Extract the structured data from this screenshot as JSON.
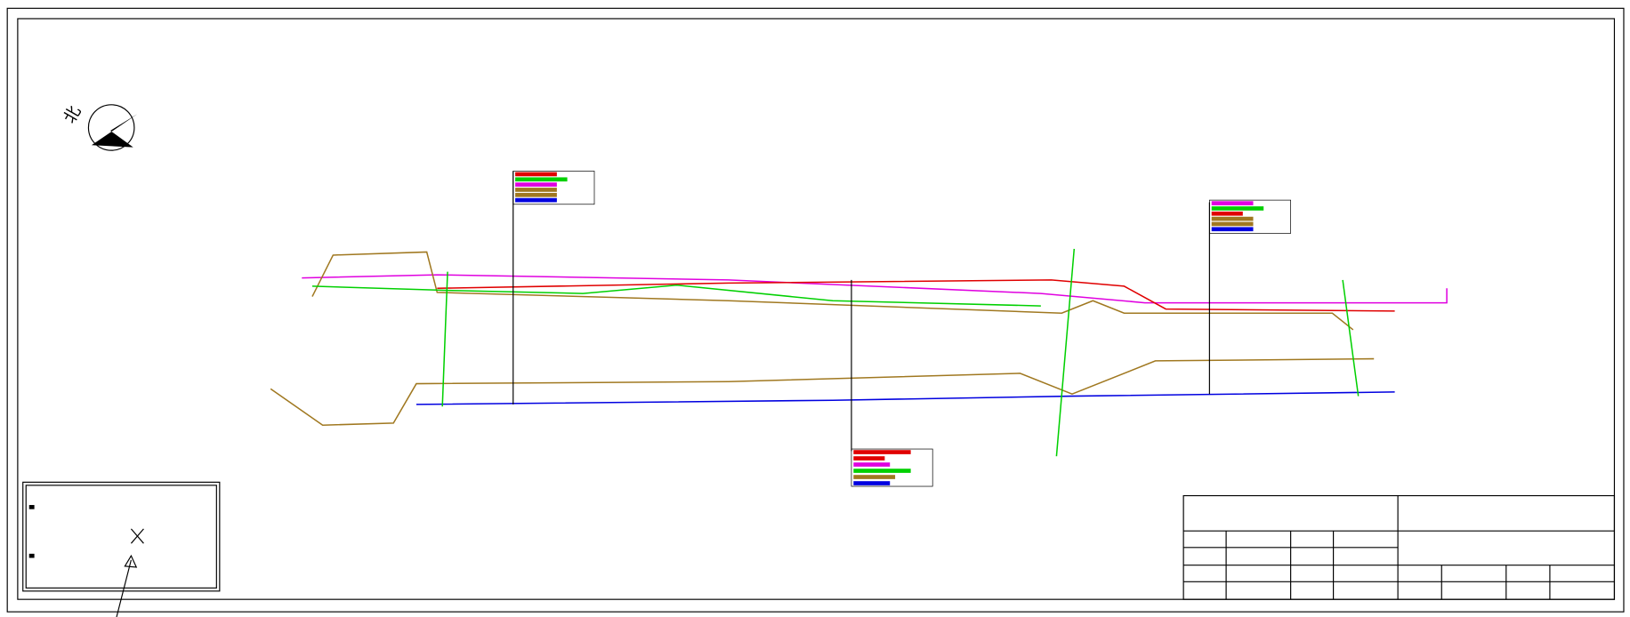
{
  "north_label": "北"
}
